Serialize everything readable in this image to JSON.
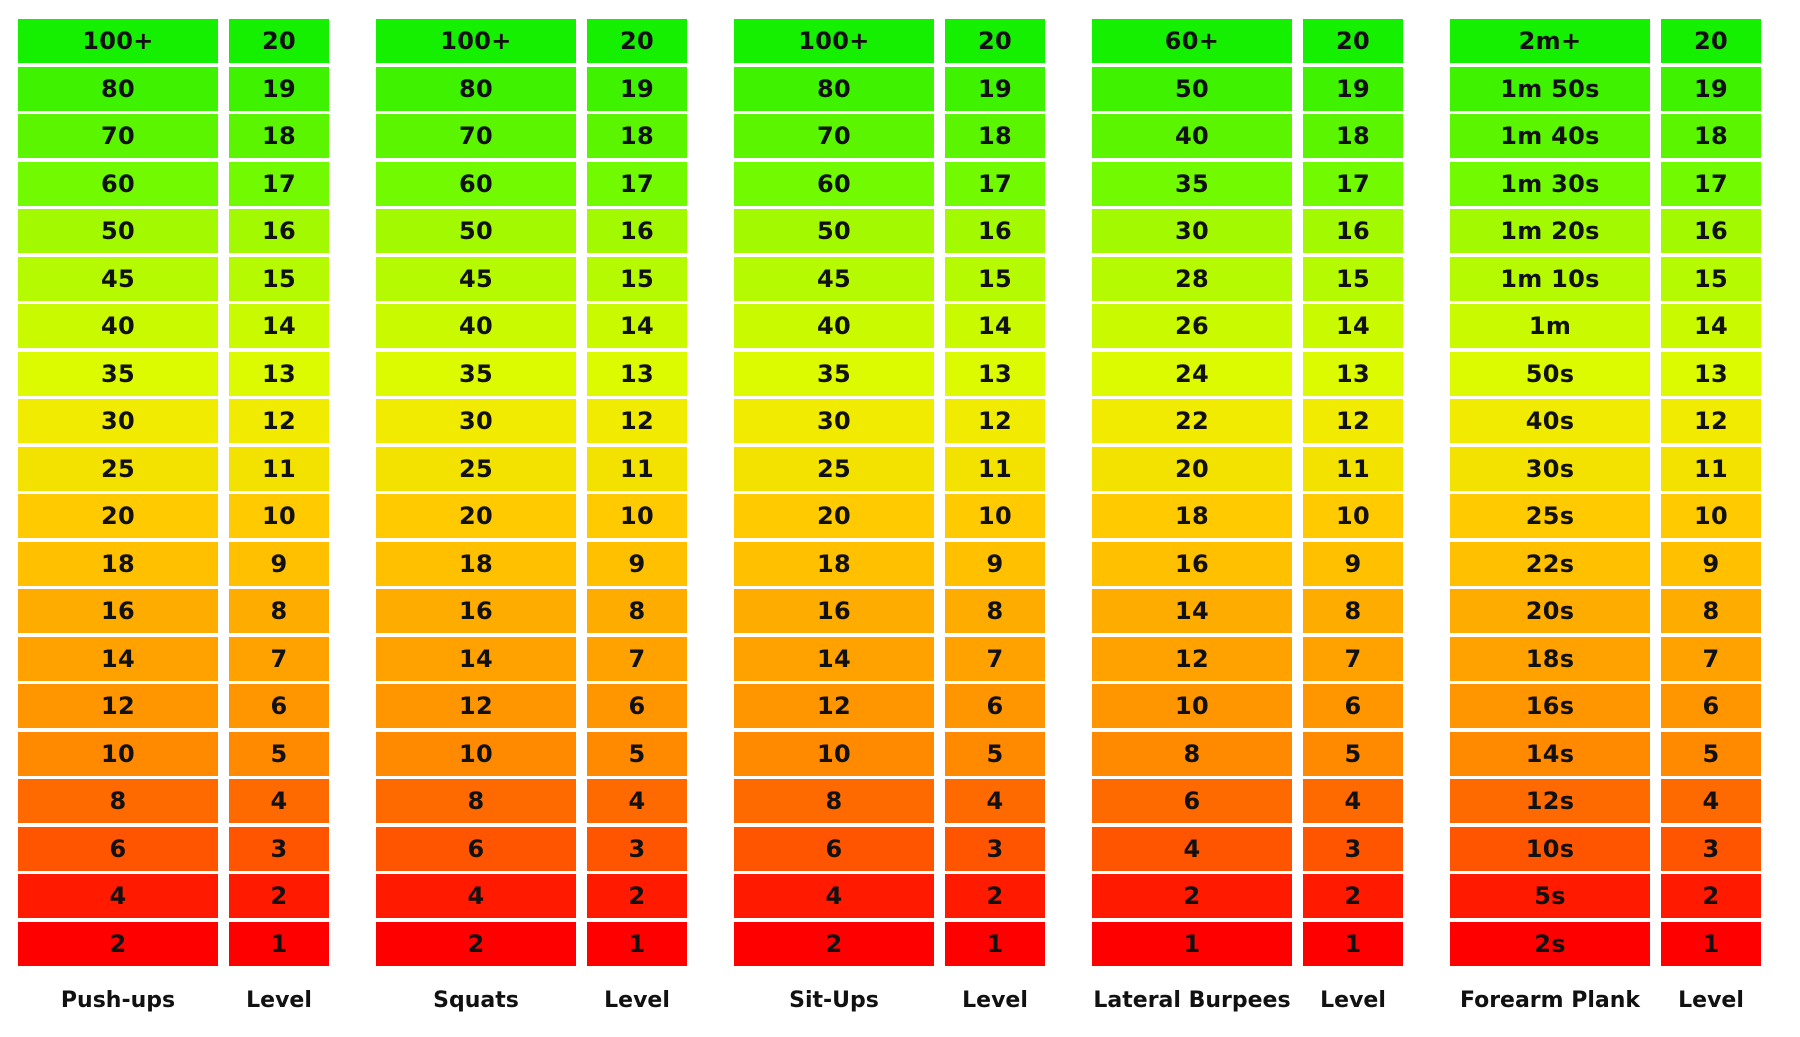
{
  "level_colors": [
    "#ff0000",
    "#ff1a00",
    "#ff5500",
    "#ff6a00",
    "#ff8a00",
    "#ff9600",
    "#ffa200",
    "#ffac00",
    "#ffc000",
    "#ffcb00",
    "#f3e100",
    "#f0eb00",
    "#dcfa00",
    "#c9fa00",
    "#b5fa00",
    "#a3fa00",
    "#72fa00",
    "#5cf500",
    "#3ef200",
    "#14f000"
  ],
  "levels": [
    "20",
    "19",
    "18",
    "17",
    "16",
    "15",
    "14",
    "13",
    "12",
    "11",
    "10",
    "9",
    "8",
    "7",
    "6",
    "5",
    "4",
    "3",
    "2",
    "1"
  ],
  "exercises": [
    {
      "name": "Push-ups",
      "level_header": "Level",
      "values": [
        "100+",
        "80",
        "70",
        "60",
        "50",
        "45",
        "40",
        "35",
        "30",
        "25",
        "20",
        "18",
        "16",
        "14",
        "12",
        "10",
        "8",
        "6",
        "4",
        "2"
      ]
    },
    {
      "name": "Squats",
      "level_header": "Level",
      "values": [
        "100+",
        "80",
        "70",
        "60",
        "50",
        "45",
        "40",
        "35",
        "30",
        "25",
        "20",
        "18",
        "16",
        "14",
        "12",
        "10",
        "8",
        "6",
        "4",
        "2"
      ]
    },
    {
      "name": "Sit-Ups",
      "level_header": "Level",
      "values": [
        "100+",
        "80",
        "70",
        "60",
        "50",
        "45",
        "40",
        "35",
        "30",
        "25",
        "20",
        "18",
        "16",
        "14",
        "12",
        "10",
        "8",
        "6",
        "4",
        "2"
      ]
    },
    {
      "name": "Lateral Burpees",
      "level_header": "Level",
      "values": [
        "60+",
        "50",
        "40",
        "35",
        "30",
        "28",
        "26",
        "24",
        "22",
        "20",
        "18",
        "16",
        "14",
        "12",
        "10",
        "8",
        "6",
        "4",
        "2",
        "1"
      ]
    },
    {
      "name": "Forearm Plank",
      "level_header": "Level",
      "values": [
        "2m+",
        "1m 50s",
        "1m 40s",
        "1m 30s",
        "1m 20s",
        "1m 10s",
        "1m",
        "50s",
        "40s",
        "30s",
        "25s",
        "22s",
        "20s",
        "18s",
        "16s",
        "14s",
        "12s",
        "10s",
        "5s",
        "2s"
      ]
    }
  ]
}
